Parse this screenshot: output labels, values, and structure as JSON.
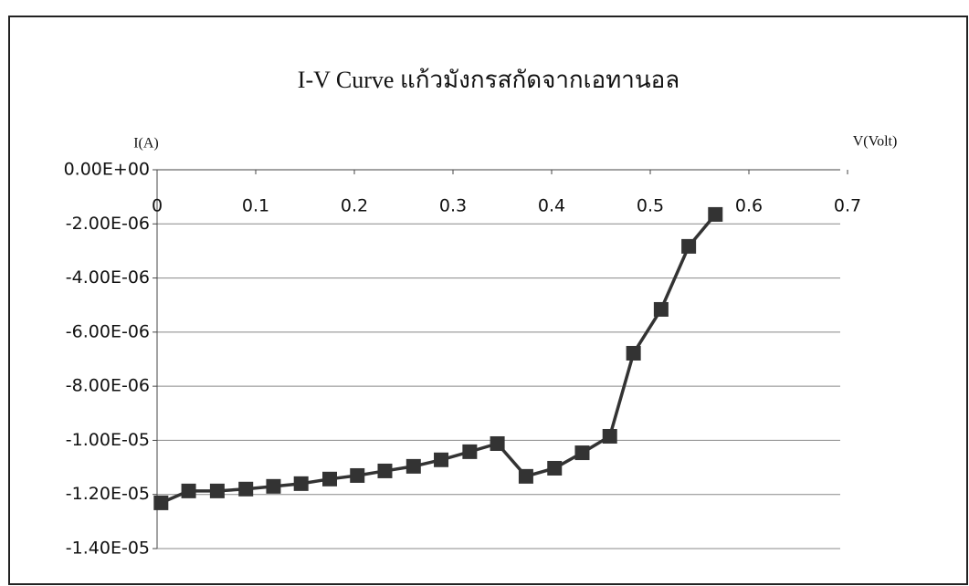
{
  "chart_data": {
    "type": "line",
    "title": "I-V Curve แก้วมังกรสกัดจากเอทานอล",
    "x_label": "V(Volt)",
    "y_label": "I(A)",
    "x": [
      0.004,
      0.032,
      0.061,
      0.09,
      0.118,
      0.146,
      0.175,
      0.203,
      0.231,
      0.26,
      0.288,
      0.317,
      0.345,
      0.374,
      0.403,
      0.431,
      0.459,
      0.483,
      0.511,
      0.539,
      0.566
    ],
    "values": [
      -1.231e-05,
      -1.187e-05,
      -1.187e-05,
      -1.18e-05,
      -1.17e-05,
      -1.16e-05,
      -1.143e-05,
      -1.13e-05,
      -1.113e-05,
      -1.096e-05,
      -1.072e-05,
      -1.042e-05,
      -1.012e-05,
      -1.133e-05,
      -1.103e-05,
      -1.046e-05,
      -9.85e-06,
      -6.78e-06,
      -5.16e-06,
      -2.83e-06,
      -1.65e-06
    ],
    "color": "#333333",
    "xlim": [
      0,
      0.7
    ],
    "xticks": [
      0,
      0.1,
      0.2,
      0.3,
      0.4,
      0.5,
      0.6,
      0.7
    ],
    "ylim": [
      -1.4e-05,
      0
    ],
    "yticks": [
      {
        "value": 0,
        "label": "0.00E+00"
      },
      {
        "value": -2e-06,
        "label": "-2.00E-06"
      },
      {
        "value": -4e-06,
        "label": "-4.00E-06"
      },
      {
        "value": -6e-06,
        "label": "-6.00E-06"
      },
      {
        "value": -8e-06,
        "label": "-8.00E-06"
      },
      {
        "value": -1e-05,
        "label": "-1.00E-05"
      },
      {
        "value": -1.2e-05,
        "label": "-1.20E-05"
      },
      {
        "value": -1.4e-05,
        "label": "-1.40E-05"
      }
    ],
    "grid": true
  }
}
